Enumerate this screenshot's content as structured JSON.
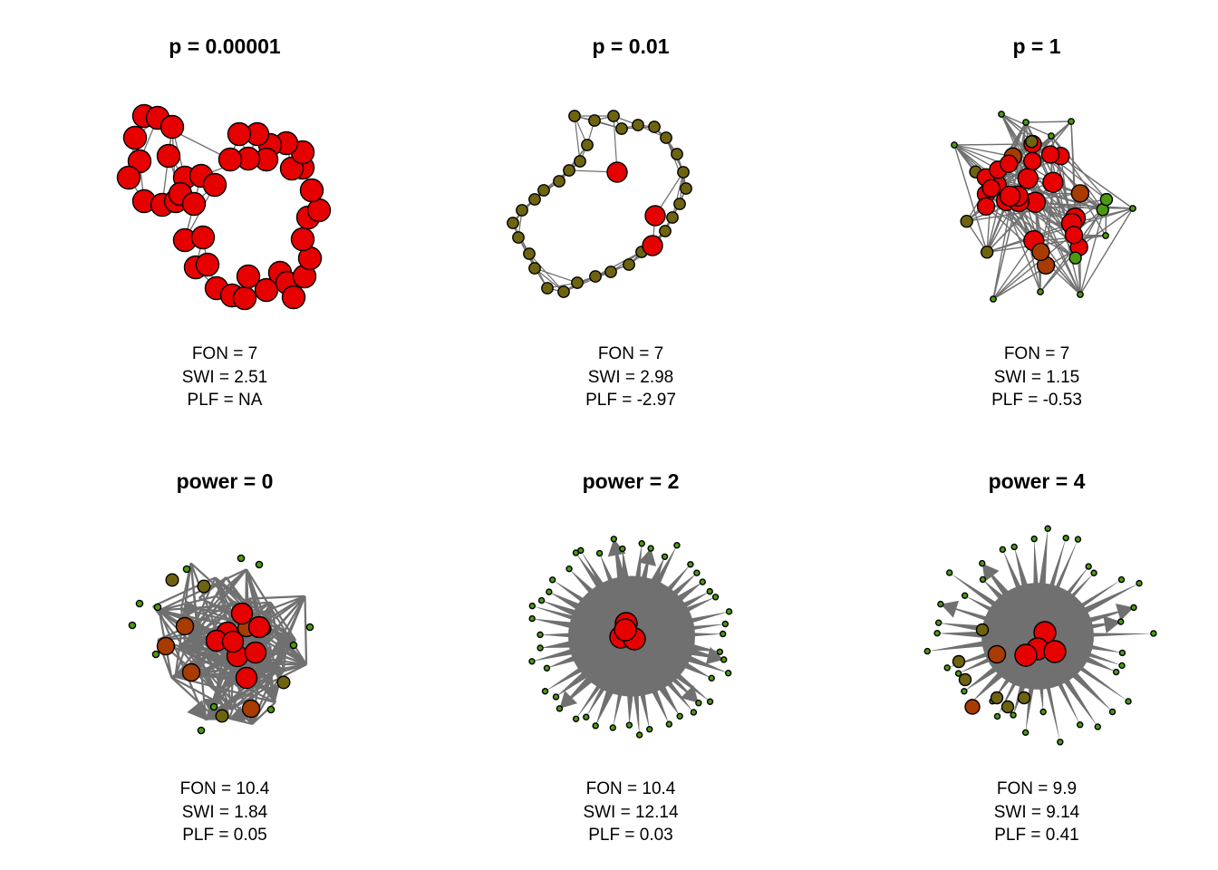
{
  "colors": {
    "edge": "#707070",
    "node_stroke": "#000000",
    "node_red": "#e60000",
    "node_rust": "#a83c00",
    "node_olive": "#6e6410",
    "node_green": "#4d9a12"
  },
  "panels": [
    {
      "title": "p = 0.00001",
      "stats": {
        "fon": "FON = 7",
        "swi": "SWI = 2.51",
        "plf": "PLF = NA"
      }
    },
    {
      "title": "p = 0.01",
      "stats": {
        "fon": "FON = 7",
        "swi": "SWI = 2.98",
        "plf": "PLF = -2.97"
      }
    },
    {
      "title": "p = 1",
      "stats": {
        "fon": "FON = 7",
        "swi": "SWI = 1.15",
        "plf": "PLF = -0.53"
      }
    },
    {
      "title": "power = 0",
      "stats": {
        "fon": "FON = 10.4",
        "swi": "SWI = 1.84",
        "plf": "PLF = 0.05"
      }
    },
    {
      "title": "power = 2",
      "stats": {
        "fon": "FON = 10.4",
        "swi": "SWI = 12.14",
        "plf": "PLF = 0.03"
      }
    },
    {
      "title": "power = 4",
      "stats": {
        "fon": "FON = 9.9",
        "swi": "SWI = 9.14",
        "plf": "PLF = 0.41"
      }
    }
  ]
}
